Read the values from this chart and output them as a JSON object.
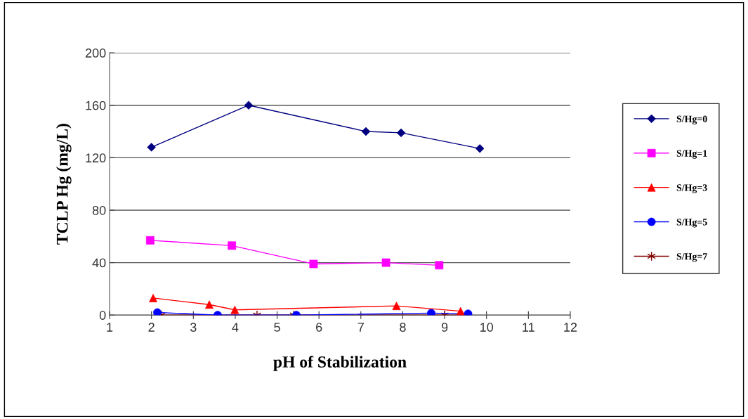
{
  "chart_data": {
    "type": "line",
    "xlabel": "pH of Stabilization",
    "ylabel": "TCLP Hg (mg/L)",
    "xlim": [
      1,
      12
    ],
    "xticks": [
      1,
      2,
      3,
      4,
      5,
      6,
      7,
      8,
      9,
      10,
      11,
      12
    ],
    "ylim": [
      0,
      200
    ],
    "yticks": [
      0,
      40,
      80,
      120,
      160,
      200
    ],
    "grid": "y",
    "legend": "right",
    "line_style": "solid",
    "series": [
      {
        "name": "S/Hg=0",
        "color": "#000080",
        "marker": "diamond",
        "x": [
          2.0,
          4.32,
          7.12,
          7.96,
          9.84
        ],
        "values": [
          128,
          160,
          140,
          139,
          127
        ]
      },
      {
        "name": "S/Hg=1",
        "color": "#ff00ff",
        "marker": "square",
        "x": [
          1.97,
          3.92,
          5.87,
          7.6,
          8.87
        ],
        "values": [
          57,
          53,
          39,
          40,
          38
        ]
      },
      {
        "name": "S/Hg=3",
        "color": "#ff0000",
        "marker": "triangle",
        "x": [
          2.04,
          3.38,
          3.99,
          7.85,
          9.38
        ],
        "values": [
          13,
          8,
          4,
          7,
          3
        ]
      },
      {
        "name": "S/Hg=5",
        "color": "#0000ff",
        "marker": "circle",
        "x": [
          2.14,
          3.58,
          5.46,
          8.68,
          9.56
        ],
        "values": [
          2,
          0,
          0,
          1.5,
          1
        ]
      },
      {
        "name": "S/Hg=7",
        "color": "#800000",
        "marker": "cross",
        "x": [
          2.24,
          4.52,
          5.4,
          9.0,
          9.56
        ],
        "values": [
          0,
          0,
          0,
          0,
          0
        ]
      }
    ]
  }
}
